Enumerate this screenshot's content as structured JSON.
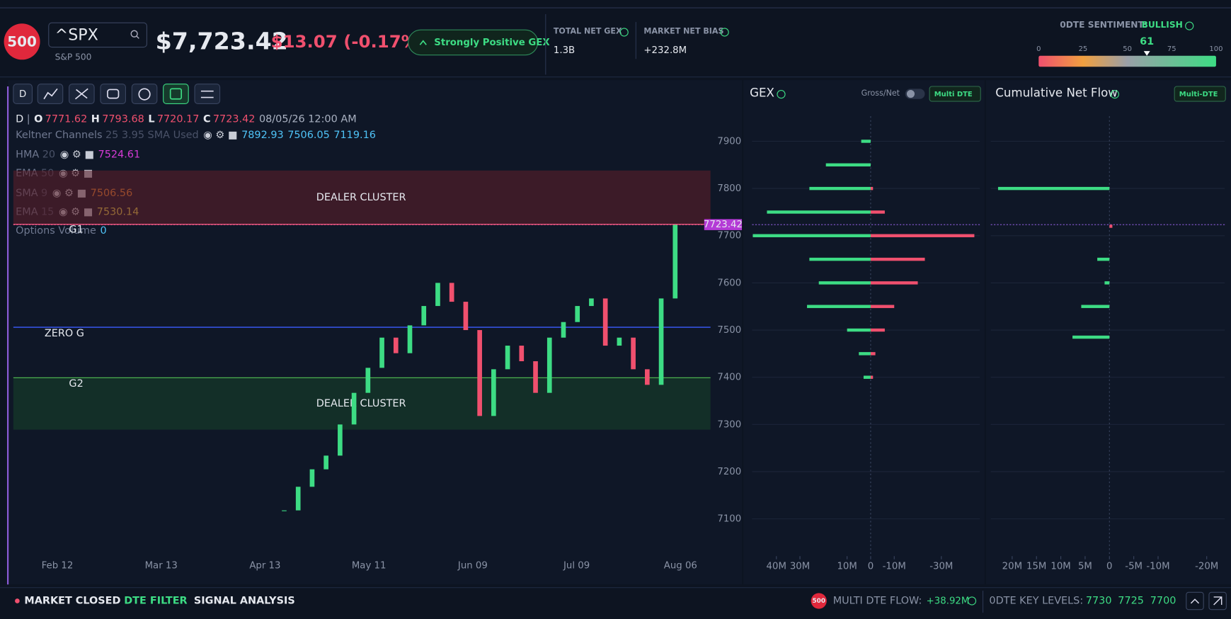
{
  "header": {
    "badge": "500",
    "symbol": "^SPX",
    "name": "S&P 500",
    "price": "$7,723.42",
    "change": "$13.07 (-0.17%)",
    "gex_status": "Strongly Positive GEX",
    "total_net_gex_label": "TOTAL NET GEX",
    "total_net_gex": "1.3B",
    "market_net_bias_label": "MARKET NET BIAS",
    "market_net_bias": "+232.8M"
  },
  "toolbar": {
    "interval": "D"
  },
  "ohlc": {
    "interval": "D",
    "labels": [
      "O",
      "H",
      "L",
      "C"
    ],
    "values": [
      7771.62,
      7793.68,
      7720.17,
      7723.42
    ],
    "datetime": "08/05/26 12:00 AM"
  },
  "indicators": [
    {
      "name": "Keltner Channels",
      "params": "25 3.95 SMA Used",
      "values": [
        7892.93,
        7506.05,
        7119.16
      ],
      "color": "#4fc3f7"
    },
    {
      "name": "HMA",
      "params": "20",
      "values": [
        7524.61
      ],
      "color": "#d63bd6"
    },
    {
      "name": "EMA",
      "params": "50",
      "color": "#2a3cc8"
    },
    {
      "name": "SMA",
      "params": "9",
      "values": [
        7506.56
      ],
      "color": "#f08a30"
    },
    {
      "name": "EMA",
      "params": "15",
      "values": [
        7530.14
      ],
      "color": "#e8d84a"
    },
    {
      "name": "Options Volume",
      "values": [
        0
      ],
      "color": "#4fc3f7"
    }
  ],
  "chart_data": [
    {
      "type": "candlestick",
      "categories": [
        "Feb 12",
        "Mar 13",
        "Apr 13",
        "May 11",
        "Jun 09",
        "Jul 09",
        "Aug 06"
      ],
      "close": [
        7118,
        7168,
        7205,
        7234,
        7300,
        7367,
        7420,
        7484,
        7451,
        7510,
        7551,
        7600,
        7560,
        7500,
        7318,
        7417,
        7467,
        7434,
        7367,
        7484,
        7517,
        7551,
        7567,
        7467,
        7484,
        7417,
        7384,
        7567,
        7723.42
      ],
      "up_color": "#3ddc84",
      "down_color": "#f0506e",
      "ylim": [
        7021,
        7953
      ],
      "yticks": [
        7100,
        7200,
        7300,
        7400,
        7500,
        7600,
        7700,
        7800,
        7900
      ],
      "last_price": 7723.42,
      "zones": [
        {
          "label": "DEALER CLUSTER",
          "from": 7724,
          "to": 7838,
          "color": "#5a1e2a"
        },
        {
          "label": "DEALER CLUSTER",
          "from": 7289,
          "to": 7399,
          "color": "#15402a"
        }
      ],
      "levels": [
        {
          "label": "G1",
          "value": 7724,
          "color": "#ff5c8a"
        },
        {
          "label": "ZERO G",
          "value": 7506,
          "color": "#3b5bff"
        },
        {
          "label": "G2",
          "value": 7399,
          "color": "#4caf50"
        }
      ]
    },
    {
      "type": "hbar",
      "title": "GEX",
      "toggle_label": "Gross/Net",
      "filter": "Multi DTE",
      "strikes": [
        7400,
        7450,
        7500,
        7550,
        7600,
        7650,
        7700,
        7750,
        7800,
        7850,
        7900
      ],
      "series": [
        {
          "color": "#3ddc84",
          "values": [
            3,
            5,
            10,
            27,
            22,
            26,
            50,
            44,
            26,
            19,
            4
          ]
        },
        {
          "color": "#f0506e",
          "values": [
            -1,
            -2,
            -6,
            -10,
            -20,
            -23,
            -44,
            -6,
            -1,
            0,
            0
          ]
        }
      ],
      "xlim": [
        50.3,
        -46.3
      ],
      "xticks": [
        {
          "value": 40,
          "label": "40M"
        },
        {
          "value": 30,
          "label": "30M"
        },
        {
          "value": 10,
          "label": "10M"
        },
        0,
        {
          "value": -10,
          "label": "-10M"
        },
        {
          "value": -30,
          "label": "-30M"
        }
      ]
    },
    {
      "type": "hbar",
      "title": "Cumulative Net Flow",
      "filter": "Multi-DTE",
      "strikes": [
        7800,
        7720,
        7650,
        7600,
        7550,
        7485
      ],
      "series": [
        {
          "color": "#3ddc84",
          "values": [
            22.9,
            0,
            2.5,
            1,
            5.8,
            7.6
          ]
        },
        {
          "color": "#f0506e",
          "values": [
            0,
            -0.6,
            0,
            0,
            0,
            0
          ]
        }
      ],
      "xlim": [
        24.4,
        -23.7
      ],
      "xticks": [
        {
          "value": 20,
          "label": "20M"
        },
        {
          "value": 15,
          "label": "15M"
        },
        {
          "value": 10,
          "label": "10M"
        },
        {
          "value": 5,
          "label": "5M"
        },
        0,
        {
          "value": -5,
          "label": "-5M"
        },
        {
          "value": -10,
          "label": "-10M"
        },
        {
          "value": -20,
          "label": "-20M"
        }
      ]
    },
    {
      "type": "gauge",
      "title": "0DTE SENTIMENT:",
      "label": "BULLISH",
      "value": 61,
      "xlim": [
        0,
        100
      ],
      "xticks": [
        0,
        25,
        50,
        75,
        100
      ]
    }
  ],
  "footer": {
    "status": "MARKET CLOSED",
    "dte_filter": "DTE FILTER",
    "signal_analysis": "SIGNAL ANALYSIS",
    "badge": "500",
    "flow_label": "MULTI DTE FLOW:",
    "flow_value": "+38.92M",
    "key_levels_label": "0DTE KEY LEVELS:",
    "key_levels": [
      7730,
      7725,
      7700
    ]
  }
}
